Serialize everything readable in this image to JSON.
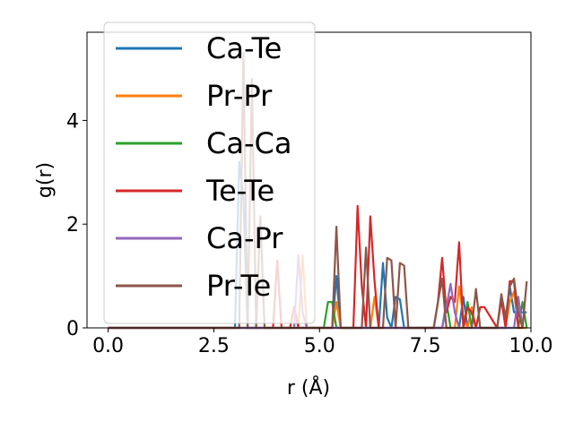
{
  "chart_data": {
    "type": "line",
    "xlabel": "r (Å)",
    "ylabel": "g(r)",
    "xlim": [
      -0.5,
      10.0
    ],
    "ylim": [
      0,
      5.7
    ],
    "xticks": [
      0.0,
      2.5,
      5.0,
      7.5,
      10.0
    ],
    "xtick_labels": [
      "0.0",
      "2.5",
      "5.0",
      "7.5",
      "10.0"
    ],
    "yticks": [
      0,
      2,
      4
    ],
    "ytick_labels": [
      "0",
      "2",
      "4"
    ],
    "grid": false,
    "legend_position": "top-left",
    "series": [
      {
        "name": "Ca-Te",
        "color": "#1f77b4",
        "x": [
          0.0,
          3.0,
          3.1,
          3.2,
          3.3,
          3.4,
          5.3,
          5.4,
          5.5,
          6.4,
          6.5,
          6.6,
          6.7,
          6.8,
          6.9,
          7.0,
          7.1,
          8.3,
          8.4,
          8.5,
          9.4,
          9.5,
          9.6,
          9.9
        ],
        "y": [
          0.0,
          0.0,
          3.2,
          2.5,
          0.0,
          0.0,
          0.0,
          1.0,
          0.0,
          0.0,
          1.25,
          0.2,
          0.0,
          0.6,
          0.55,
          0.0,
          0.0,
          0.0,
          0.6,
          0.0,
          0.0,
          0.8,
          0.3,
          0.3
        ]
      },
      {
        "name": "Pr-Pr",
        "color": "#ff7f0e",
        "x": [
          0.0,
          4.5,
          4.6,
          4.7,
          5.3,
          5.4,
          5.5,
          6.2,
          6.3,
          6.4,
          8.2,
          8.3,
          8.4,
          8.5,
          8.6,
          8.7,
          9.4,
          9.5,
          9.6,
          9.7,
          9.9
        ],
        "y": [
          0.0,
          0.0,
          1.4,
          0.0,
          0.0,
          0.5,
          0.0,
          0.0,
          0.6,
          0.0,
          0.0,
          0.8,
          0.2,
          0.0,
          0.4,
          0.0,
          0.0,
          0.5,
          0.7,
          0.0,
          0.0
        ]
      },
      {
        "name": "Ca-Ca",
        "color": "#2ca02c",
        "x": [
          0.0,
          5.1,
          5.2,
          5.3,
          5.4,
          7.9,
          8.0,
          8.1,
          8.4,
          8.5,
          8.6,
          9.7,
          9.8,
          9.9
        ],
        "y": [
          0.0,
          0.0,
          0.5,
          0.5,
          0.0,
          0.0,
          0.5,
          0.0,
          0.0,
          0.5,
          0.0,
          0.0,
          0.5,
          0.0
        ]
      },
      {
        "name": "Te-Te",
        "color": "#d62728",
        "x": [
          0.0,
          3.9,
          4.0,
          4.1,
          4.3,
          4.4,
          4.5,
          5.8,
          5.9,
          6.0,
          6.1,
          6.2,
          6.3,
          6.4,
          6.5,
          7.2,
          7.3,
          7.7,
          7.8,
          7.9,
          8.0,
          8.1,
          8.2,
          8.3,
          8.4,
          8.5,
          8.6,
          8.7,
          8.8,
          8.9,
          9.2,
          9.3,
          9.4,
          9.5,
          9.6,
          9.7,
          9.8
        ],
        "y": [
          0.0,
          0.0,
          1.3,
          0.0,
          0.0,
          0.4,
          0.0,
          0.0,
          2.35,
          0.8,
          0.0,
          2.15,
          0.9,
          0.0,
          0.0,
          0.0,
          0.0,
          0.0,
          0.5,
          1.35,
          0.3,
          0.6,
          0.5,
          1.65,
          0.0,
          0.4,
          0.3,
          0.0,
          0.4,
          0.4,
          0.0,
          0.55,
          0.0,
          0.9,
          0.9,
          0.0,
          0.0
        ]
      },
      {
        "name": "Ca-Pr",
        "color": "#9467bd",
        "x": [
          0.0,
          4.4,
          4.5,
          4.6,
          4.7,
          7.9,
          8.0,
          8.1,
          8.2,
          8.3,
          8.4,
          9.6,
          9.7,
          9.8
        ],
        "y": [
          0.0,
          0.0,
          1.4,
          0.3,
          0.0,
          0.0,
          0.4,
          0.85,
          0.3,
          0.0,
          0.0,
          0.0,
          0.6,
          0.0
        ]
      },
      {
        "name": "Pr-Te",
        "color": "#8c564b",
        "x": [
          0.0,
          3.1,
          3.2,
          3.3,
          3.4,
          3.5,
          3.6,
          3.7,
          5.3,
          5.4,
          5.5,
          6.0,
          6.1,
          6.2,
          6.5,
          6.6,
          6.7,
          6.8,
          6.9,
          7.0,
          7.1,
          7.2,
          7.7,
          7.8,
          7.9,
          8.0,
          8.6,
          8.7,
          8.8,
          9.2,
          9.3,
          9.4,
          9.5,
          9.6,
          9.7,
          9.8,
          9.9
        ],
        "y": [
          0.0,
          0.0,
          5.3,
          0.0,
          4.8,
          0.0,
          2.15,
          0.0,
          0.0,
          1.95,
          0.0,
          0.0,
          1.55,
          0.0,
          0.0,
          1.35,
          1.3,
          0.0,
          1.25,
          1.2,
          0.0,
          0.0,
          0.0,
          0.5,
          0.95,
          0.0,
          0.0,
          0.75,
          0.0,
          0.0,
          0.65,
          0.2,
          0.8,
          0.95,
          0.3,
          0.0,
          0.9
        ]
      }
    ]
  }
}
